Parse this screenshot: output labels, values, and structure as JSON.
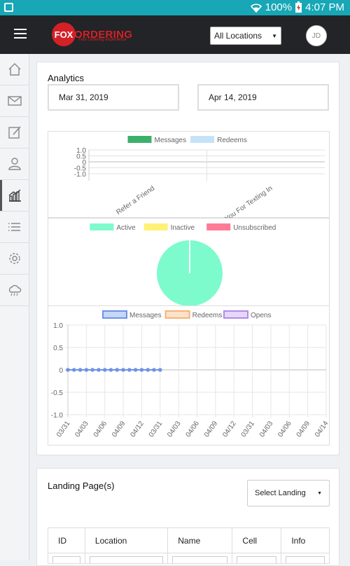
{
  "status_bar": {
    "battery": "100%",
    "time": "4:07 PM"
  },
  "topbar": {
    "logo_badge": "FOX",
    "logo_word": "ORDERING",
    "logo_tagline": "Fast Ordering eXperience",
    "location_select": "All Locations",
    "avatar_initials": "JD"
  },
  "sidebar": {
    "items": [
      {
        "icon": "home-icon"
      },
      {
        "icon": "mail-icon"
      },
      {
        "icon": "edit-icon"
      },
      {
        "icon": "user-icon"
      },
      {
        "icon": "analytics-icon",
        "active": true
      },
      {
        "icon": "list-icon"
      },
      {
        "icon": "settings-icon"
      },
      {
        "icon": "cloud-icon"
      }
    ]
  },
  "analytics": {
    "title": "Analytics",
    "start_date": "Mar 31, 2019",
    "end_date": "Apr 14, 2019"
  },
  "chart_data": [
    {
      "type": "bar",
      "categories": [
        "Refer a Friend",
        "Thank You For Texting In"
      ],
      "series": [
        {
          "name": "Messages",
          "values": [
            0,
            0
          ],
          "color": "#3cb06a"
        },
        {
          "name": "Redeems",
          "values": [
            0,
            0
          ],
          "color": "#c6e2f6"
        }
      ],
      "yticks": [
        "1.0",
        "0.5",
        "0",
        "-0.5",
        "-1.0"
      ],
      "ylim": [
        -1,
        1
      ]
    },
    {
      "type": "pie",
      "labels": [
        "Active",
        "Inactive",
        "Unsubscribed"
      ],
      "values": [
        100,
        0,
        0
      ],
      "colors": [
        "#7dfbcc",
        "#fff176",
        "#ff7b95"
      ]
    },
    {
      "type": "line",
      "series": [
        {
          "name": "Messages",
          "color": "#6e93e6",
          "fill": "#c6d7f7",
          "values": [
            0,
            0,
            0,
            0,
            0,
            0,
            0,
            0,
            0,
            0,
            0,
            0,
            0,
            0,
            0,
            0,
            0,
            0,
            0,
            0
          ]
        },
        {
          "name": "Redeems",
          "color": "#f5b37a",
          "fill": "#fde2c9",
          "values": []
        },
        {
          "name": "Opens",
          "color": "#b48ae8",
          "fill": "#e5d7f8",
          "values": []
        }
      ],
      "xticks": [
        "03/31",
        "04/03",
        "04/06",
        "04/09",
        "04/12",
        "03/31",
        "04/03",
        "04/06",
        "04/09",
        "04/12",
        "03/31",
        "04/03",
        "04/06",
        "04/09",
        "04/14"
      ],
      "yticks": [
        "1.0",
        "0.5",
        "0",
        "-0.5",
        "-1.0"
      ],
      "ylim": [
        -1,
        1
      ],
      "points_drawn": 16
    }
  ],
  "landing": {
    "title": "Landing Page(s)",
    "select_placeholder": "Select Landing",
    "columns": [
      "ID",
      "Location",
      "Name",
      "Cell",
      "Info"
    ]
  }
}
